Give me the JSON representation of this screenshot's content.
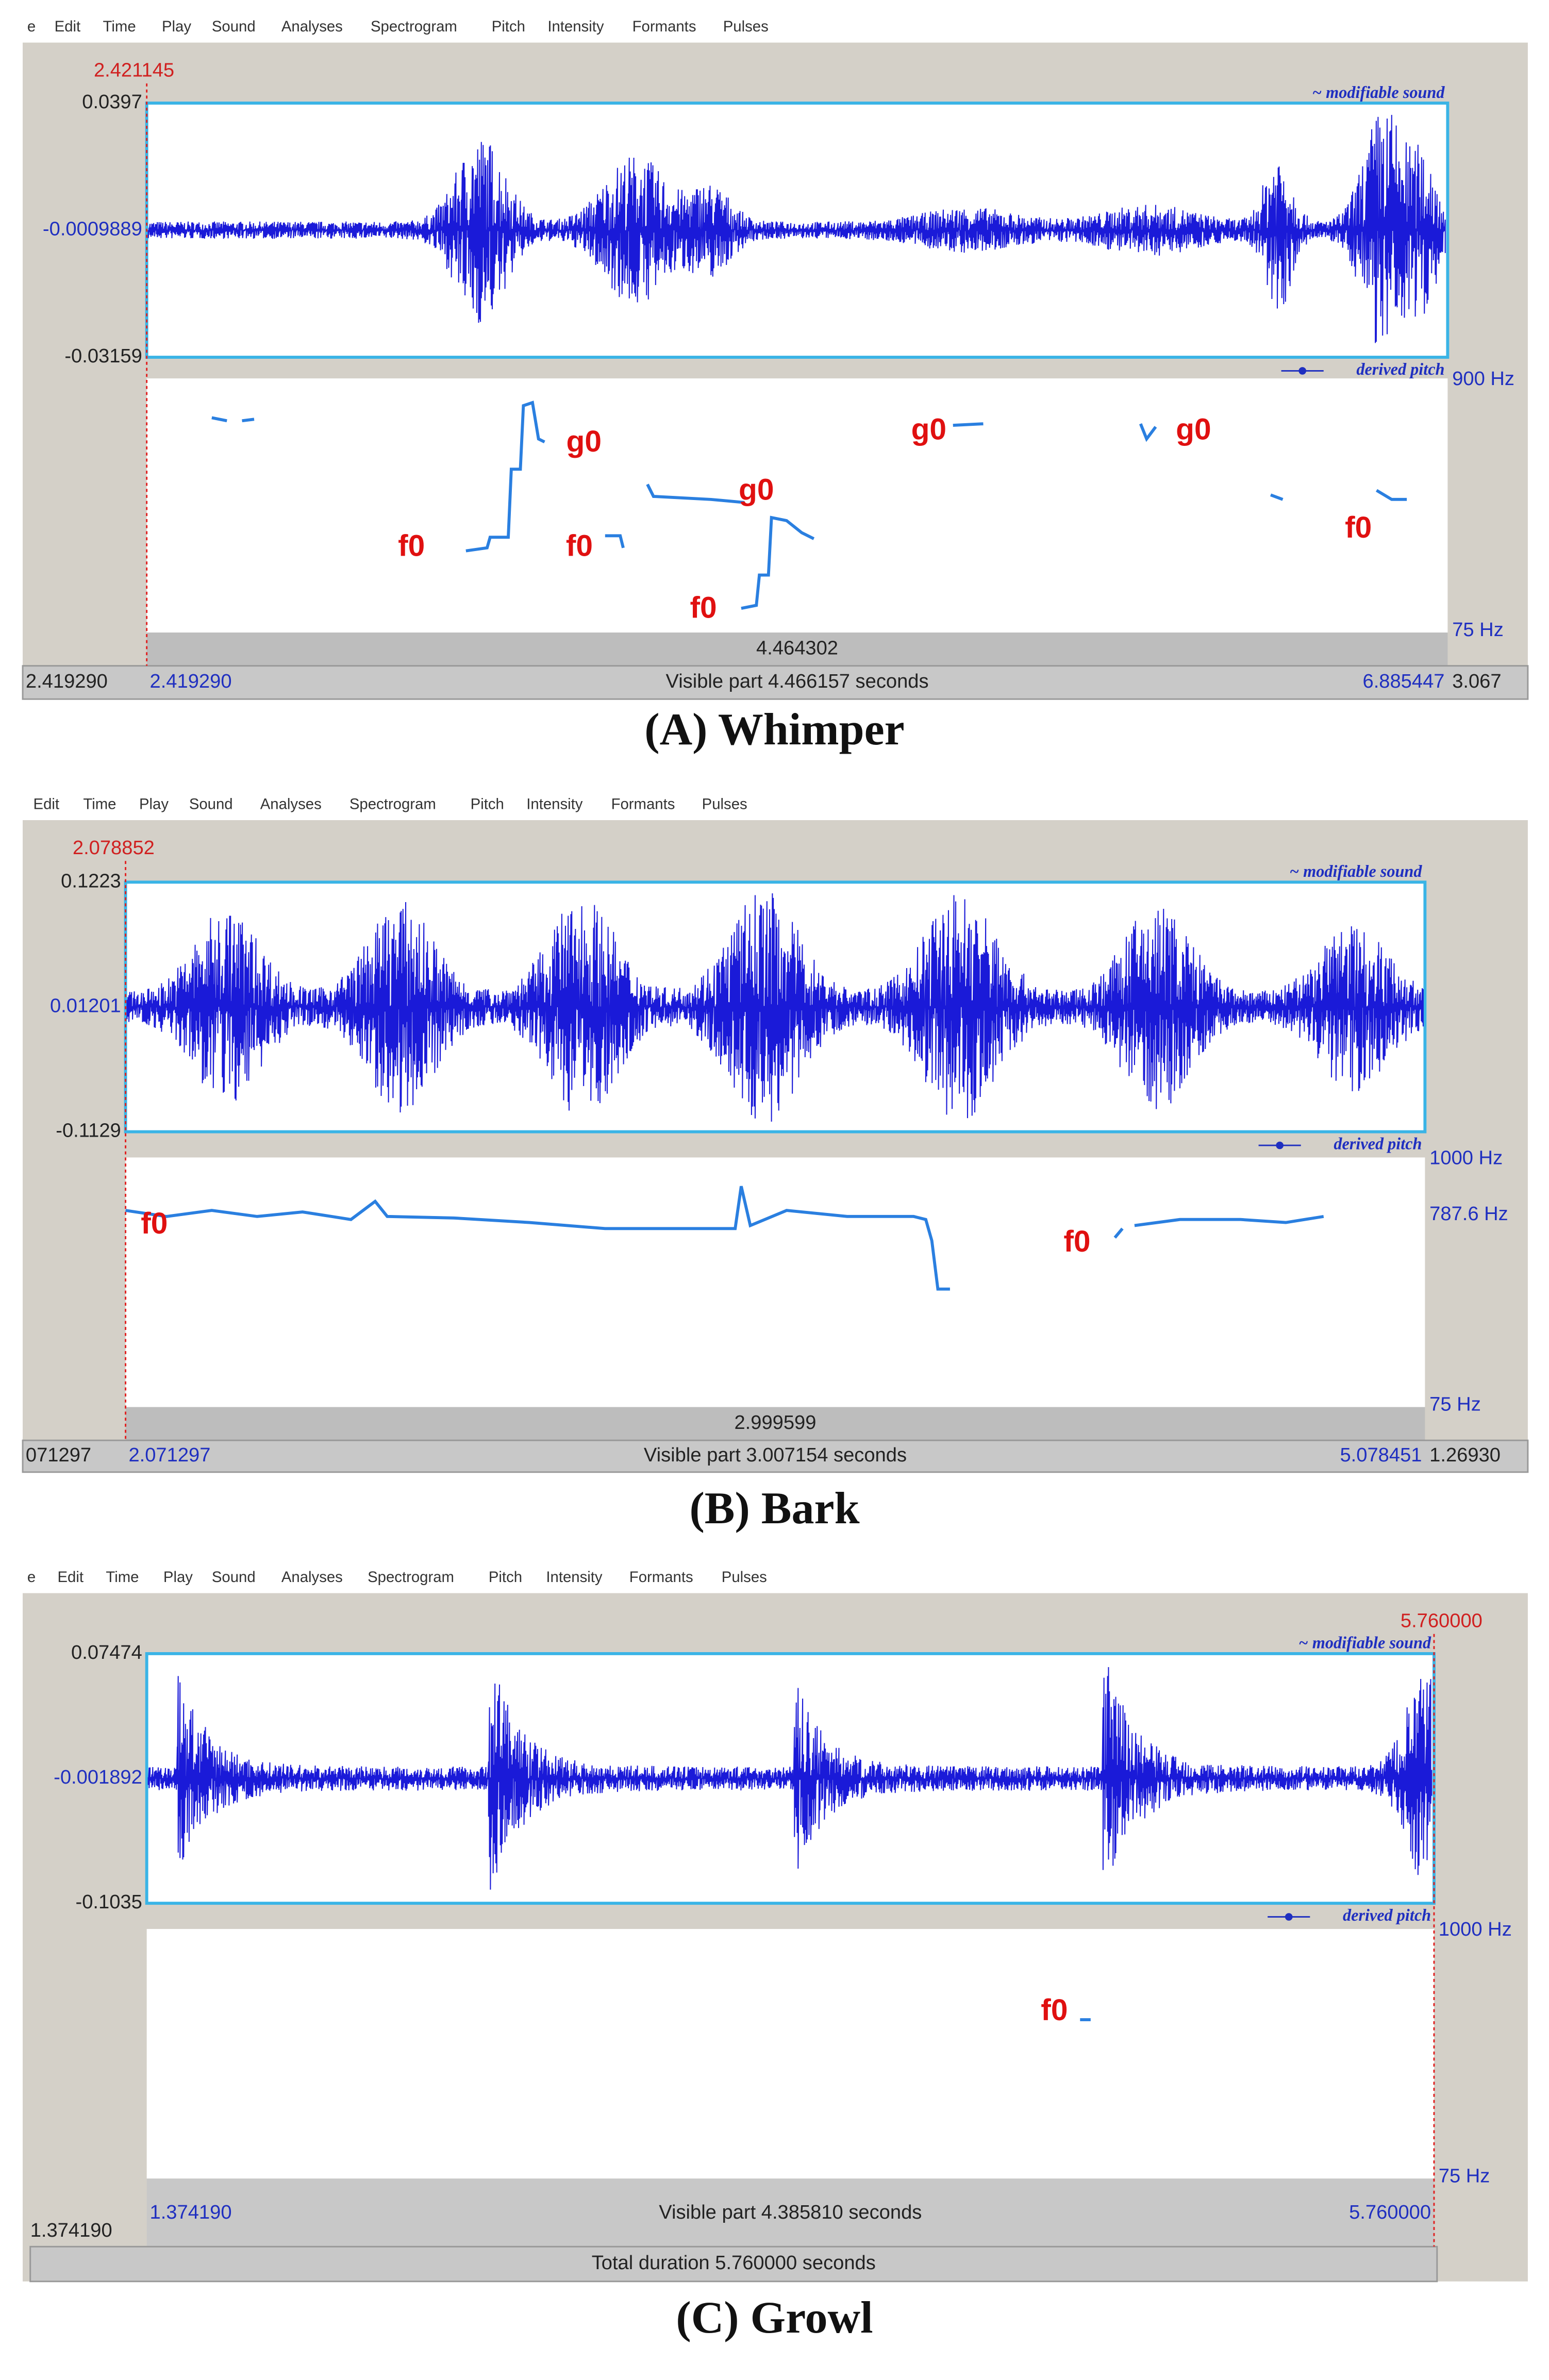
{
  "panels": [
    {
      "menu": [
        "e",
        "Edit",
        "Time",
        "Play",
        "Sound",
        "Analyses",
        "Spectrogram",
        "Pitch",
        "Intensity",
        "Formants",
        "Pulses"
      ],
      "cursor_time": "2.421145",
      "amp_top": "0.0397",
      "amp_mid": "-0.0009889",
      "amp_bottom": "-0.03159",
      "sound_label": "~ modifiable sound",
      "pitch_label": "derived pitch",
      "pitch_top": "900 Hz",
      "pitch_bottom": "75 Hz",
      "annotations": [
        "g0",
        "g0",
        "g0",
        "g0",
        "f0",
        "f0",
        "f0",
        "f0"
      ],
      "selection": "4.464302",
      "left_outer": "2.419290",
      "left_time": "2.419290",
      "visible": "Visible part 4.466157 seconds",
      "right_time": "6.885447",
      "right_outer": "3.067",
      "caption": "(A) Whimper"
    },
    {
      "menu": [
        "Edit",
        "Time",
        "Play",
        "Sound",
        "Analyses",
        "Spectrogram",
        "Pitch",
        "Intensity",
        "Formants",
        "Pulses"
      ],
      "cursor_time": "2.078852",
      "amp_top": "0.1223",
      "amp_mid": "0.01201",
      "amp_bottom": "-0.1129",
      "sound_label": "~ modifiable sound",
      "pitch_label": "derived pitch",
      "pitch_top": "1000 Hz",
      "pitch_mid": "787.6 Hz",
      "pitch_bottom": "75 Hz",
      "annotations": [
        "f0",
        "f0"
      ],
      "selection": "2.999599",
      "left_outer": "071297",
      "left_time": "2.071297",
      "visible": "Visible part 3.007154 seconds",
      "right_time": "5.078451",
      "right_outer": "1.26930",
      "caption": "(B) Bark"
    },
    {
      "menu": [
        "e",
        "Edit",
        "Time",
        "Play",
        "Sound",
        "Analyses",
        "Spectrogram",
        "Pitch",
        "Intensity",
        "Formants",
        "Pulses"
      ],
      "cursor_time": "5.760000",
      "amp_top": "0.07474",
      "amp_mid": "-0.001892",
      "amp_bottom": "-0.1035",
      "sound_label": "~ modifiable sound",
      "pitch_label": "derived pitch",
      "pitch_top": "1000 Hz",
      "pitch_bottom": "75 Hz",
      "annotations": [
        "f0"
      ],
      "left_outer": "1.374190",
      "left_time": "1.374190",
      "visible": "Visible part 4.385810 seconds",
      "right_time": "5.760000",
      "total": "Total duration 5.760000 seconds",
      "caption": "(C) Growl"
    }
  ]
}
